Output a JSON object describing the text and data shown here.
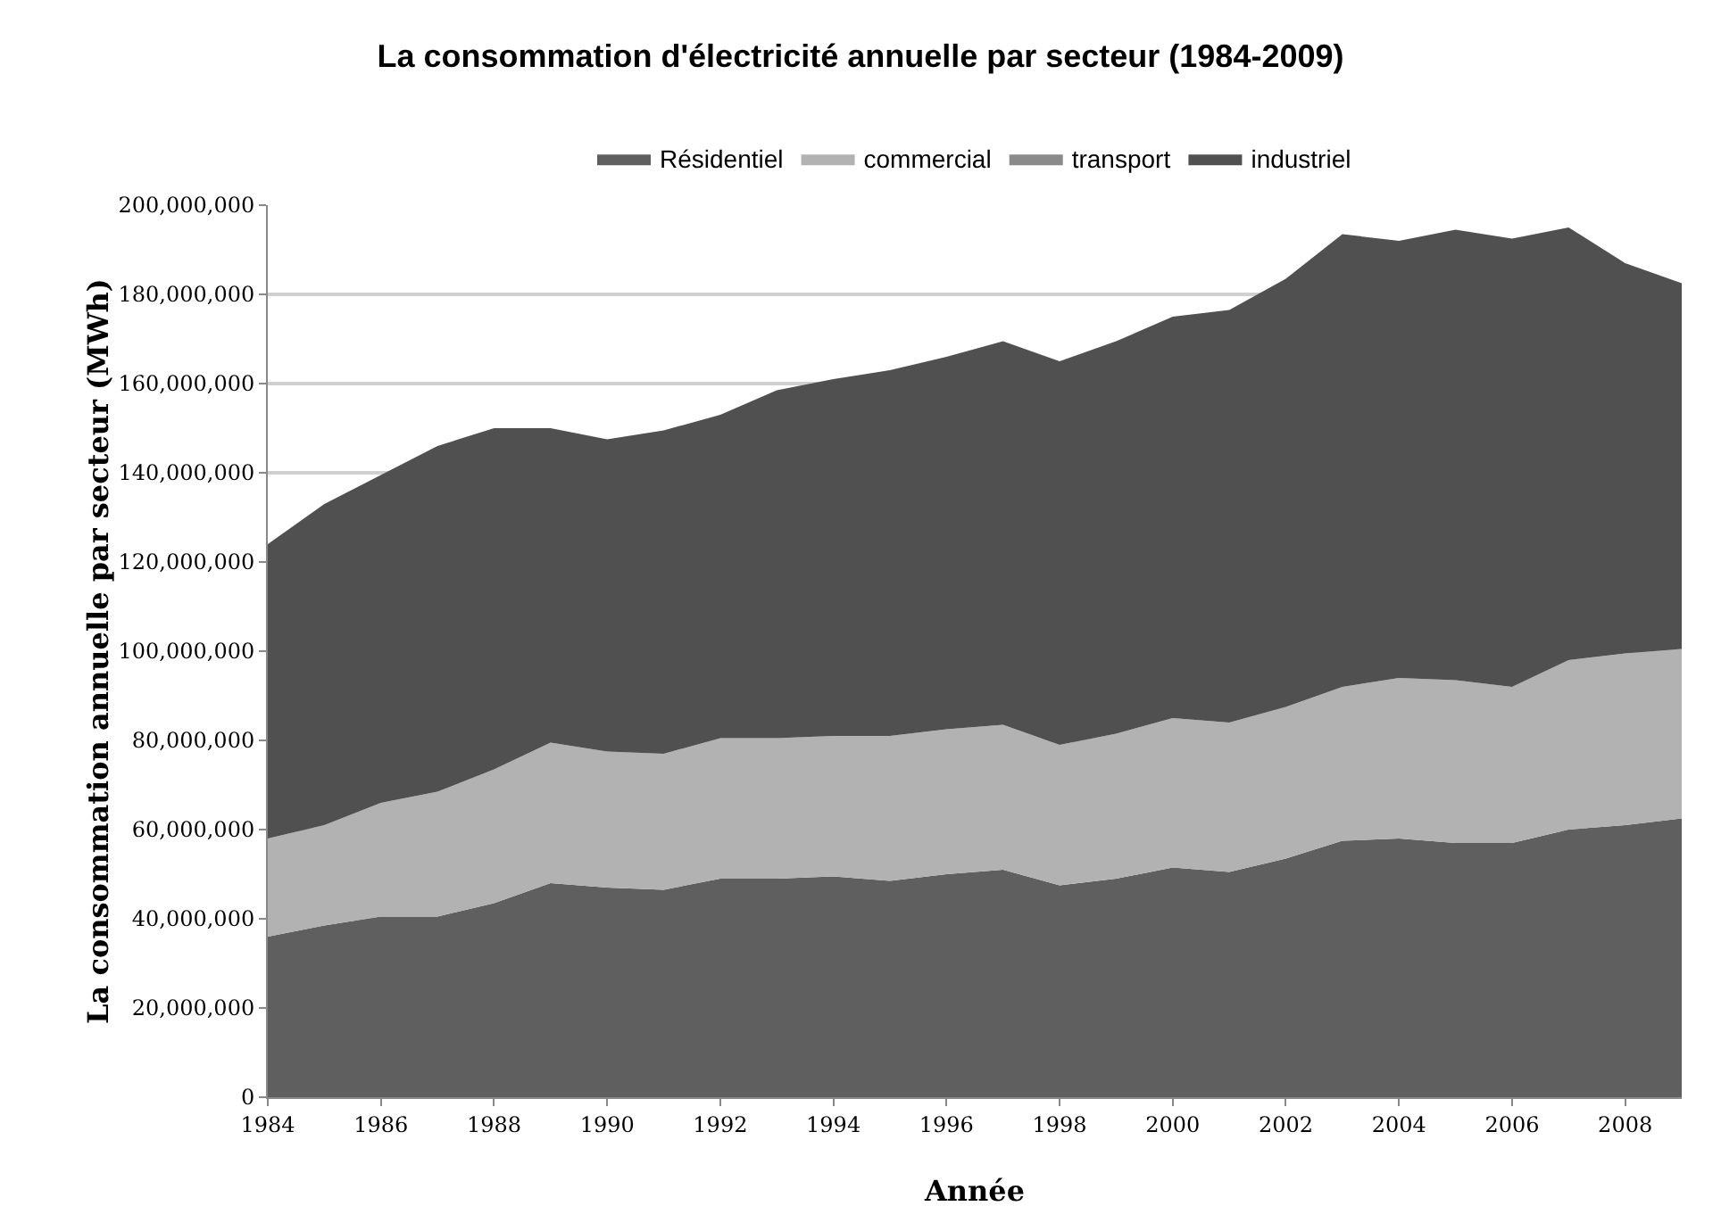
{
  "chart_data": {
    "type": "area",
    "stacked": true,
    "title": "La consommation d'électricité annuelle par secteur (1984-2009)",
    "xlabel": "Année",
    "ylabel": "La consommation annuelle par secteur (MWh)",
    "x": [
      1984,
      1985,
      1986,
      1987,
      1988,
      1989,
      1990,
      1991,
      1992,
      1993,
      1994,
      1995,
      1996,
      1997,
      1998,
      1999,
      2000,
      2001,
      2002,
      2003,
      2004,
      2005,
      2006,
      2007,
      2008,
      2009
    ],
    "series": [
      {
        "name": "Résidentiel",
        "color": "#5f5f5f",
        "values": [
          36000000,
          38500000,
          40500000,
          40500000,
          43500000,
          48000000,
          47000000,
          46500000,
          49000000,
          49000000,
          49500000,
          48500000,
          50000000,
          51000000,
          47500000,
          49000000,
          51500000,
          50500000,
          53500000,
          57500000,
          58000000,
          57000000,
          57000000,
          60000000,
          61000000,
          62500000
        ]
      },
      {
        "name": "commercial",
        "color": "#b2b2b2",
        "values": [
          22000000,
          22500000,
          25500000,
          28000000,
          30000000,
          31500000,
          30500000,
          30500000,
          31500000,
          31500000,
          31500000,
          32500000,
          32500000,
          32500000,
          31500000,
          32500000,
          33500000,
          33500000,
          34000000,
          34500000,
          36000000,
          36500000,
          35000000,
          38000000,
          38500000,
          38000000
        ]
      },
      {
        "name": "transport",
        "color": "#8a8a8a",
        "values": [
          null,
          null,
          null,
          null,
          null,
          null,
          null,
          null,
          null,
          null,
          null,
          null,
          null,
          null,
          null,
          null,
          null,
          null,
          null,
          null,
          null,
          null,
          null,
          null,
          null,
          null
        ]
      },
      {
        "name": "industriel",
        "color": "#505050",
        "values": [
          66000000,
          72000000,
          73500000,
          77500000,
          76500000,
          70500000,
          70000000,
          72500000,
          72500000,
          78000000,
          80000000,
          82000000,
          83500000,
          86000000,
          86000000,
          88000000,
          90000000,
          92500000,
          96000000,
          101500000,
          98000000,
          101000000,
          100500000,
          97000000,
          87500000,
          82000000
        ]
      }
    ],
    "xlim": [
      1984,
      2009
    ],
    "xticks": [
      1984,
      1986,
      1988,
      1990,
      1992,
      1994,
      1996,
      1998,
      2000,
      2002,
      2004,
      2006,
      2008
    ],
    "ylim": [
      0,
      200000000
    ],
    "yticks": [
      {
        "value": 0,
        "label": "0"
      },
      {
        "value": 20000000,
        "label": "20,000,000"
      },
      {
        "value": 40000000,
        "label": "40,000,000"
      },
      {
        "value": 60000000,
        "label": "60,000,000"
      },
      {
        "value": 80000000,
        "label": "80,000,000"
      },
      {
        "value": 100000000,
        "label": "100,000,000"
      },
      {
        "value": 120000000,
        "label": "120,000,000"
      },
      {
        "value": 140000000,
        "label": "140,000,000"
      },
      {
        "value": 160000000,
        "label": "160,000,000"
      },
      {
        "value": 180000000,
        "label": "180,000,000"
      },
      {
        "value": 200000000,
        "label": "200,000,000"
      }
    ],
    "grid": "y",
    "legend": "top"
  }
}
